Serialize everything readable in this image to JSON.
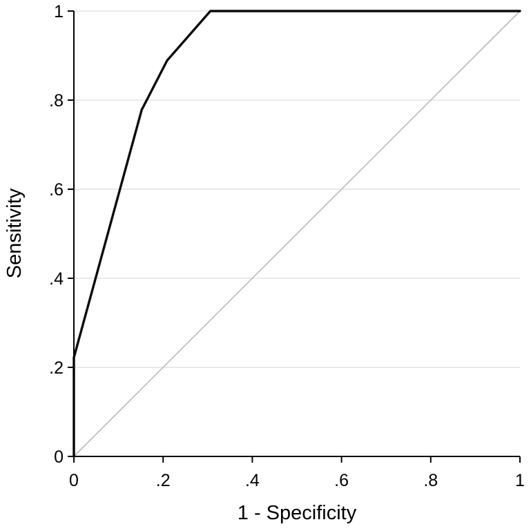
{
  "chart_data": {
    "type": "line",
    "title": "",
    "xlabel": "1 - Specificity",
    "ylabel": "Sensitivity",
    "xlim": [
      0,
      1
    ],
    "ylim": [
      0,
      1
    ],
    "xticks": [
      0,
      0.2,
      0.4,
      0.6,
      0.8,
      1
    ],
    "yticks": [
      0,
      0.2,
      0.4,
      0.6,
      0.8,
      1
    ],
    "xtick_labels": [
      "0",
      ".2",
      ".4",
      ".6",
      ".8",
      "1"
    ],
    "ytick_labels": [
      "0",
      ".2",
      ".4",
      ".6",
      ".8",
      "1"
    ],
    "grid": "horizontal-y",
    "grid_color": "#dedede",
    "axis_color": "#000000",
    "legend": "none",
    "series": [
      {
        "name": "reference-diagonal",
        "color": "#b8b8b8",
        "width": 1.6,
        "x": [
          0,
          1
        ],
        "y": [
          0,
          1
        ]
      },
      {
        "name": "roc-curve",
        "color": "#0a0a0a",
        "width": 3.4,
        "x": [
          0,
          0,
          0.152,
          0.209,
          0.306,
          1
        ],
        "y": [
          0,
          0.222,
          0.778,
          0.889,
          1,
          1
        ]
      }
    ]
  }
}
